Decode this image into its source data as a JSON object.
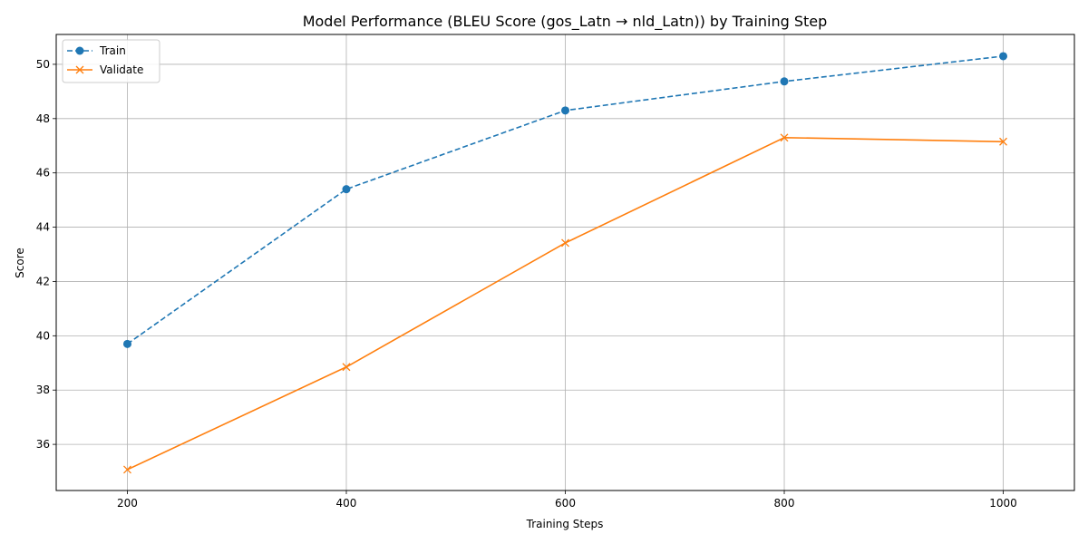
{
  "chart_data": {
    "type": "line",
    "title": "Model Performance (BLEU Score (gos_Latn → nld_Latn)) by Training Step",
    "xlabel": "Training Steps",
    "ylabel": "Score",
    "x": [
      200,
      400,
      600,
      800,
      1000
    ],
    "xlim": [
      135,
      1065
    ],
    "ylim": [
      34.3,
      51.1
    ],
    "xticks": [
      200,
      400,
      600,
      800,
      1000
    ],
    "yticks": [
      36,
      38,
      40,
      42,
      44,
      46,
      48,
      50
    ],
    "grid": true,
    "legend_position": "top-left",
    "series": [
      {
        "name": "Train",
        "color": "#1f77b4",
        "line_style": "dashed",
        "marker": "circle",
        "values": [
          39.7,
          45.4,
          48.3,
          49.37,
          50.3
        ]
      },
      {
        "name": "Validate",
        "color": "#ff7f0e",
        "line_style": "solid",
        "marker": "x",
        "values": [
          35.07,
          38.85,
          43.42,
          47.3,
          47.15
        ]
      }
    ]
  }
}
